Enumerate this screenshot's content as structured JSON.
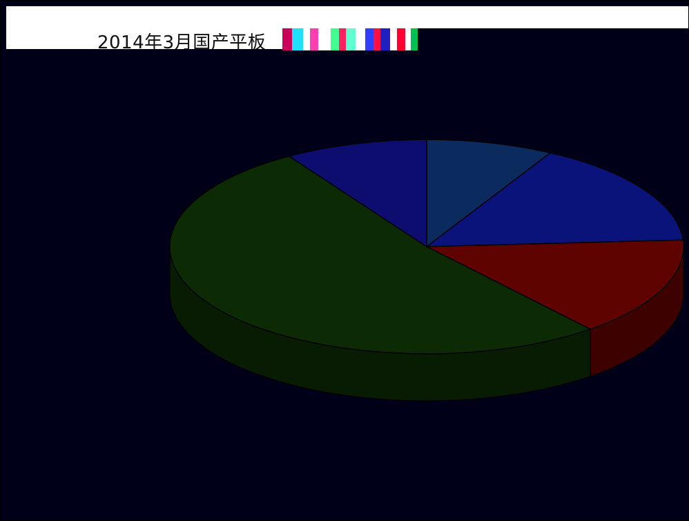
{
  "chart_data": {
    "type": "pie",
    "title": "2014年3月国产平板",
    "slices": [
      {
        "value": 8,
        "color": "#0b2a5e"
      },
      {
        "value": 16,
        "color": "#0a137a"
      },
      {
        "value": 15,
        "color": "#5e0300"
      },
      {
        "value": 52,
        "color": "#0c2a04"
      },
      {
        "value": 9,
        "color": "#0c0d6e"
      }
    ],
    "start_angle_deg": -90,
    "three_d": true,
    "legend": "none"
  }
}
